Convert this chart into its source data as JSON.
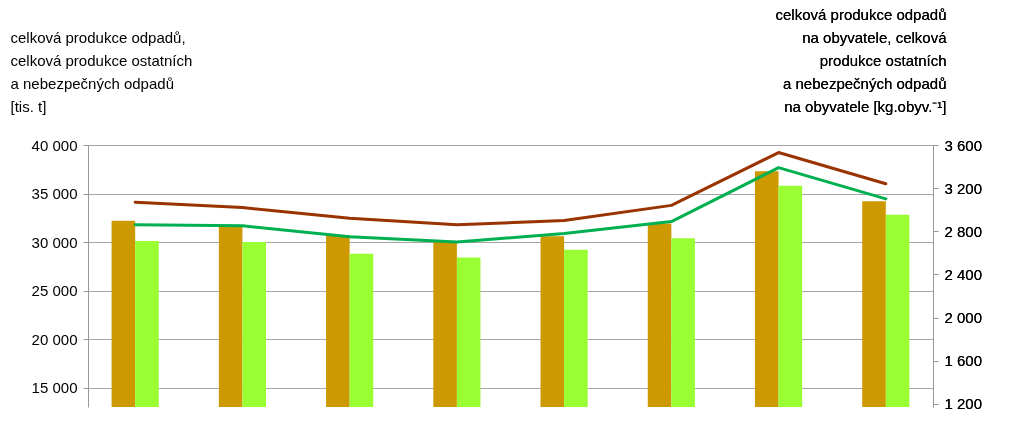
{
  "chart_data": {
    "type": "bar",
    "ylabel": "celková produkce odpadů,\ncelková produkce ostatních\na nebezpečných odpadů\n[tis. t]",
    "y2label": "celková produkce odpadů\nna obyvatele, celková\nprodukce ostatních\na nebezpečných odpadů\nna obyvatele [kg.obyv.⁻¹]",
    "categories": [
      null,
      null,
      null,
      null,
      null,
      null,
      null,
      null
    ],
    "series": [
      {
        "color": "#cc9900",
        "values": [
          32200,
          31700,
          30700,
          30100,
          30600,
          31900,
          37300,
          34200
        ]
      },
      {
        "color": "#99ff33",
        "values": [
          30100,
          30000,
          28800,
          28400,
          29200,
          30400,
          35800,
          32800
        ]
      },
      {
        "type": "line",
        "axis": "y2",
        "color": "#993300",
        "values": [
          3070,
          3020,
          2920,
          2860,
          2900,
          3040,
          3530,
          3240
        ]
      },
      {
        "type": "line",
        "axis": "y2",
        "color": "#00b050",
        "values": [
          2860,
          2850,
          2750,
          2700,
          2780,
          2890,
          3390,
          3100
        ]
      }
    ],
    "ylim": [
      13000,
      40000
    ],
    "yticks": [
      {
        "value": 15000,
        "label": "15 000"
      },
      {
        "value": 20000,
        "label": "20 000"
      },
      {
        "value": 25000,
        "label": "25 000"
      },
      {
        "value": 30000,
        "label": "30 000"
      },
      {
        "value": 35000,
        "label": "35 000"
      },
      {
        "value": 40000,
        "label": "40 000"
      }
    ],
    "y2lim": [
      1170,
      3600
    ],
    "y2ticks": [
      {
        "value": 1200,
        "label": "1 200"
      },
      {
        "value": 1600,
        "label": "1 600"
      },
      {
        "value": 2000,
        "label": "2 000"
      },
      {
        "value": 2400,
        "label": "2 400"
      },
      {
        "value": 2800,
        "label": "2 800"
      },
      {
        "value": 3200,
        "label": "3 200"
      },
      {
        "value": 3600,
        "label": "3 600"
      }
    ],
    "grid": "y"
  }
}
